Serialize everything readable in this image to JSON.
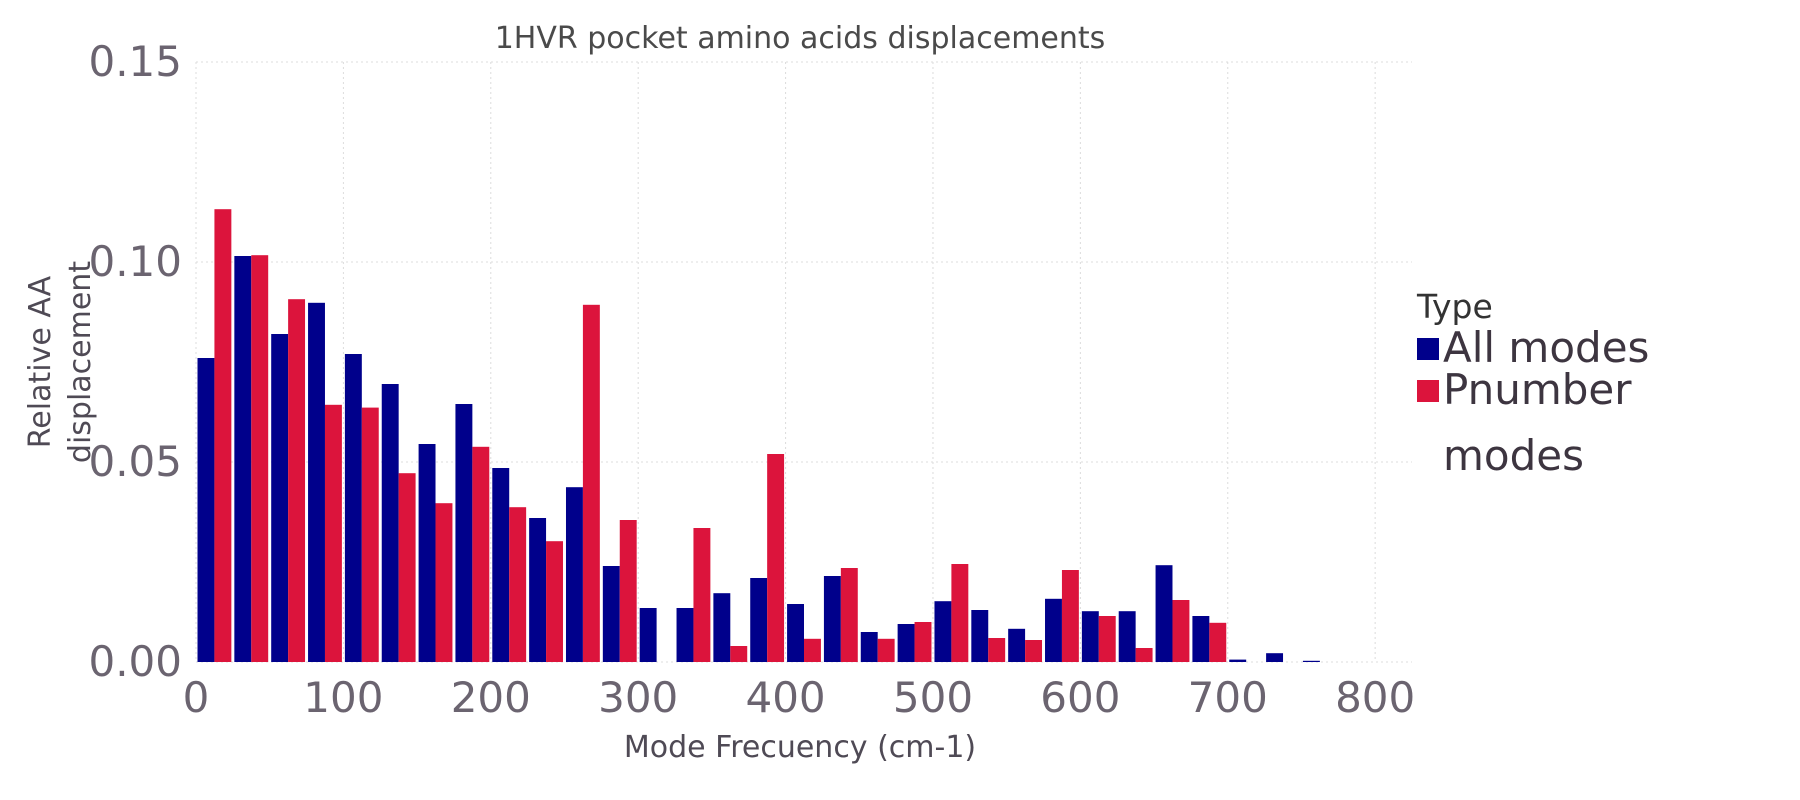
{
  "chart_data": {
    "type": "bar",
    "title": "1HVR pocket amino acids displacements",
    "xlabel": "Mode Frecuency (cm-1)",
    "ylabel": "Relative AA displacement",
    "xlim": [
      0,
      825
    ],
    "ylim": [
      0,
      0.15
    ],
    "x_ticks": [
      0,
      100,
      200,
      300,
      400,
      500,
      600,
      700,
      800
    ],
    "x_tick_labels": [
      "0",
      "100",
      "200",
      "300",
      "400",
      "500",
      "600",
      "700",
      "800"
    ],
    "y_ticks": [
      0.0,
      0.05,
      0.1,
      0.15
    ],
    "y_tick_labels": [
      "0.00",
      "0.05",
      "0.10",
      "0.15"
    ],
    "bin_width": 25,
    "bin_start": [
      0,
      25,
      50,
      75,
      100,
      125,
      150,
      175,
      200,
      225,
      250,
      275,
      300,
      325,
      350,
      375,
      400,
      425,
      450,
      475,
      500,
      525,
      550,
      575,
      600,
      625,
      650,
      675,
      700,
      725,
      750
    ],
    "grid": true,
    "legend": {
      "title": "Type",
      "position": "right"
    },
    "series": [
      {
        "name": "All modes",
        "color": "#00008b",
        "values": [
          0.076,
          0.1015,
          0.082,
          0.0898,
          0.077,
          0.0695,
          0.0545,
          0.0645,
          0.0485,
          0.036,
          0.0437,
          0.024,
          0.0135,
          0.0135,
          0.0172,
          0.021,
          0.0145,
          0.0215,
          0.0075,
          0.0095,
          0.0152,
          0.013,
          0.0083,
          0.0158,
          0.0127,
          0.0127,
          0.0242,
          0.0115,
          0.0006,
          0.0022,
          0.0003
        ]
      },
      {
        "name": "Pnumber modes",
        "legend_lines": [
          "Pnumber",
          "modes"
        ],
        "color": "#dc143c",
        "values": [
          0.1132,
          0.1017,
          0.0907,
          0.0643,
          0.0636,
          0.0472,
          0.0397,
          0.0538,
          0.0387,
          0.0302,
          0.0893,
          0.0355,
          0.0,
          0.0335,
          0.004,
          0.052,
          0.0058,
          0.0235,
          0.0058,
          0.01,
          0.0245,
          0.006,
          0.0055,
          0.023,
          0.0115,
          0.0035,
          0.0155,
          0.0098,
          0.0,
          0.0,
          0.0
        ]
      }
    ]
  }
}
